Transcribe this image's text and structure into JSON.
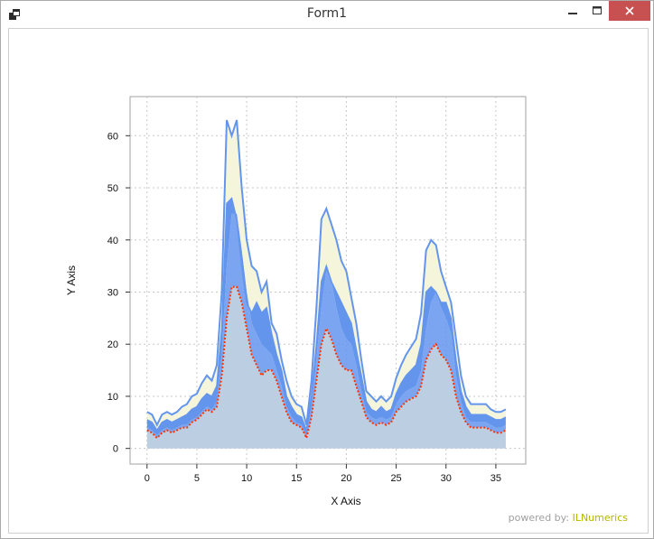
{
  "window": {
    "title": "Form1",
    "minimize_symbol": "–",
    "maximize_symbol": "□",
    "close_symbol": "✕"
  },
  "footer": {
    "powered_label": "powered by:",
    "brand": "ILNumerics"
  },
  "colors": {
    "window_border": "#a9a9a9",
    "close_button": "#c75050",
    "series_fill_light": "#bccee2",
    "series_fill_mid": "#6495ed",
    "series_fill_pale": "#f5f5dc",
    "series_line": "#6495ed",
    "marker_line": "#ff3300",
    "grid": "#c8c8c8"
  },
  "chart_data": {
    "type": "area",
    "xlabel": "X Axis",
    "ylabel": "Y Axis",
    "xlim": [
      -1.7,
      38
    ],
    "ylim": [
      -3,
      67.5
    ],
    "xticks": [
      0,
      5,
      10,
      15,
      20,
      25,
      30,
      35
    ],
    "yticks": [
      0,
      10,
      20,
      30,
      40,
      50,
      60
    ],
    "grid": true,
    "legend": "none",
    "x": [
      0,
      0.5,
      1,
      1.5,
      2,
      2.5,
      3,
      3.5,
      4,
      4.5,
      5,
      5.5,
      6,
      6.5,
      7,
      7.5,
      8,
      8.5,
      9,
      9.5,
      10,
      10.5,
      11,
      11.5,
      12,
      12.5,
      13,
      13.5,
      14,
      14.5,
      15,
      15.5,
      16,
      16.5,
      17,
      17.5,
      18,
      18.5,
      19,
      19.5,
      20,
      20.5,
      21,
      21.5,
      22,
      22.5,
      23,
      23.5,
      24,
      24.5,
      25,
      25.5,
      26,
      26.5,
      27,
      27.5,
      28,
      28.5,
      29,
      29.5,
      30,
      30.5,
      31,
      31.5,
      32,
      32.5,
      33,
      33.5,
      34,
      34.5,
      35,
      35.5,
      36
    ],
    "series": [
      {
        "values": [
          3.5,
          3,
          2,
          3,
          3.5,
          3,
          3.5,
          4,
          4,
          5,
          5.5,
          6.5,
          7.5,
          7,
          8,
          14,
          25,
          31,
          31,
          28,
          23,
          18,
          16,
          14,
          15,
          15,
          13,
          10,
          7,
          5,
          4.5,
          4,
          2,
          6,
          13,
          20,
          23,
          21,
          18,
          16,
          15,
          15,
          12,
          9,
          6,
          5,
          4.5,
          5,
          4.5,
          5,
          7,
          8,
          9,
          9.5,
          10,
          12,
          17,
          19,
          20,
          18,
          17,
          15,
          10,
          7,
          5,
          4,
          4,
          4,
          4,
          3.5,
          3,
          3,
          3.5
        ]
      },
      {
        "values": [
          4,
          3.5,
          2.5,
          3.5,
          4,
          3.5,
          4,
          4.5,
          4.5,
          5.5,
          6,
          7,
          8,
          7.5,
          9,
          18,
          35,
          45,
          45,
          38,
          30,
          24,
          22,
          20,
          19,
          18,
          15,
          12,
          8,
          6,
          5,
          4.5,
          2.5,
          8,
          17,
          27,
          34,
          32,
          27,
          23,
          21,
          20,
          16,
          11,
          7,
          6,
          5.5,
          6,
          5.5,
          6,
          8.5,
          10,
          11,
          11.5,
          12,
          15,
          23,
          28,
          30,
          27,
          25,
          22,
          14,
          9,
          6,
          5,
          5,
          5,
          5,
          4.5,
          4,
          4,
          4.5
        ]
      },
      {
        "values": [
          5.5,
          5,
          3.5,
          5,
          5.5,
          5,
          5.5,
          6,
          6.5,
          7.5,
          8,
          9.5,
          10.5,
          10,
          12,
          23,
          47,
          48,
          44,
          35,
          28,
          26,
          28,
          26,
          27,
          22,
          18,
          15,
          10,
          8,
          6.5,
          6,
          3.5,
          10,
          20,
          32,
          35,
          32,
          30,
          28,
          26,
          24,
          19,
          14,
          9,
          7.5,
          7,
          8,
          7,
          7.5,
          10.5,
          12.5,
          14,
          15,
          16,
          20,
          30,
          31,
          30,
          28,
          28,
          25,
          17,
          11,
          8,
          6.5,
          6.5,
          6.5,
          6.5,
          6,
          5.5,
          5.5,
          6
        ]
      },
      {
        "values": [
          7,
          6.5,
          4.5,
          6.5,
          7,
          6.5,
          7,
          8,
          8.5,
          10,
          10.5,
          12.5,
          14,
          13,
          16,
          30,
          63,
          60,
          63,
          50,
          40,
          35,
          34,
          30,
          32,
          24,
          22,
          17,
          13,
          10,
          8.5,
          8,
          4.5,
          13,
          27,
          44,
          46,
          43,
          40,
          36,
          34,
          29,
          24,
          17,
          11,
          10,
          9,
          10,
          9,
          10,
          13.5,
          16,
          18,
          19.5,
          21,
          26,
          38,
          40,
          39,
          34,
          31,
          28,
          21,
          14,
          10,
          8.5,
          8.5,
          8.5,
          8.5,
          7.5,
          7,
          7,
          7.5
        ]
      }
    ]
  }
}
